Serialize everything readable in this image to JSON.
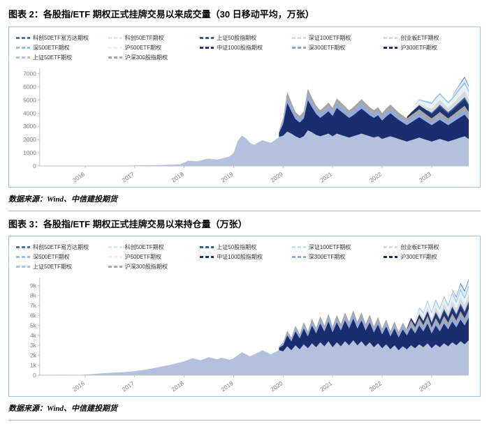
{
  "figure2": {
    "title": "图表 2：各股指/ETF 期权正式挂牌交易以来成交量（30 日移动平均，万张）",
    "source": "数据来源：Wind、中信建投期货"
  },
  "figure3": {
    "title": "图表 3：各股指/ETF 期权正式挂牌交易以来持仓量（万张）",
    "source": "数据来源：Wind、中信建投期货"
  },
  "colors": {
    "panel_border": "#9DC3E6",
    "axis": "#bfbfbf",
    "tick_text": "#7f7f7f"
  },
  "legend": [
    {
      "label": "科创50ETF易方达期权",
      "color": "#4472C4"
    },
    {
      "label": "科创50ETF期权",
      "color": "#DEEBF7"
    },
    {
      "label": "上证50股指期权",
      "color": "#2E5EAA"
    },
    {
      "label": "深证100ETF期权",
      "color": "#C9E3F2"
    },
    {
      "label": "创业板ETF期权",
      "color": "#D9D9D9"
    },
    {
      "label": "深500ETF期权",
      "color": "#8FC1E9"
    },
    {
      "label": "沪500ETF期权",
      "color": "#EAF1F9"
    },
    {
      "label": "中证1000股指期权",
      "color": "#1F3470"
    },
    {
      "label": "深300ETF期权",
      "color": "#8FAADC"
    },
    {
      "label": "沪300ETF期权",
      "color": "#1A2D6E"
    },
    {
      "label": "上证50ETF期权",
      "color": "#B3C1DC"
    },
    {
      "label": "沪深300股指期权",
      "color": "#A6A6A6"
    }
  ],
  "chart_data": [
    {
      "type": "area",
      "stacked": true,
      "title": "各股指/ETF期权正式挂牌交易以来成交量（30日移动平均，万张）",
      "legend_position": "top",
      "grid": false,
      "x_start": "2015-02",
      "x_end": "2023-10",
      "ylim": [
        0,
        7400
      ],
      "y_ticks": [
        {
          "v": 0,
          "label": "0"
        },
        {
          "v": 1000,
          "label": "1000"
        },
        {
          "v": 2000,
          "label": "2000"
        },
        {
          "v": 3000,
          "label": "3000"
        },
        {
          "v": 4000,
          "label": "4000"
        },
        {
          "v": 5000,
          "label": "5000"
        },
        {
          "v": 6000,
          "label": "6000"
        },
        {
          "v": 7000,
          "label": "7000"
        }
      ],
      "x_ticks": [
        {
          "m": "2016-01",
          "label": "2016"
        },
        {
          "m": "2017-01",
          "label": "2017"
        },
        {
          "m": "2018-01",
          "label": "2018"
        },
        {
          "m": "2019-01",
          "label": "2019"
        },
        {
          "m": "2020-01",
          "label": "2020"
        },
        {
          "m": "2021-01",
          "label": "2021"
        },
        {
          "m": "2022-01",
          "label": "2022"
        },
        {
          "m": "2023-01",
          "label": "2023"
        }
      ],
      "series": [
        {
          "name": "上证50ETF期权",
          "color": "#B3C1DC",
          "start": "2015-02",
          "values": [
            2,
            4,
            6,
            9,
            12,
            15,
            13,
            11,
            9,
            8,
            8,
            9,
            10,
            12,
            14,
            15,
            17,
            19,
            21,
            24,
            26,
            29,
            32,
            36,
            40,
            45,
            50,
            56,
            62,
            70,
            79,
            89,
            100,
            115,
            130,
            250,
            400,
            380,
            350,
            420,
            500,
            560,
            520,
            480,
            560,
            640,
            720,
            1000,
            1900,
            2300,
            2100,
            1750,
            1600,
            1800,
            1950,
            1850,
            1750,
            1950,
            2200,
            2300,
            2600,
            2450,
            2250,
            2100,
            2250,
            2700,
            2550,
            2350,
            2250,
            2350,
            2450,
            2250,
            2450,
            2350,
            2250,
            2150,
            2250,
            2350,
            2450,
            2350,
            2250,
            2150,
            2250,
            2050,
            2150,
            2250,
            2150,
            2050,
            1950,
            1850,
            1950,
            2050,
            2150,
            2050,
            1950,
            1850,
            1950,
            2050,
            1950,
            1850,
            1950,
            2050,
            2150,
            2250,
            2050
          ]
        },
        {
          "name": "沪300ETF期权",
          "color": "#1A2D6E",
          "start": "2019-12",
          "values": [
            300,
            900,
            2200,
            1700,
            1300,
            1200,
            1350,
            2300,
            1900,
            1600,
            1400,
            1550,
            1700,
            1550,
            1950,
            1800,
            1650,
            1500,
            1600,
            1750,
            1900,
            1750,
            1600,
            1500,
            1600,
            1400,
            1600,
            1750,
            1600,
            1450,
            1350,
            1250,
            1350,
            1450,
            1550,
            1450,
            1350,
            1250,
            1350,
            1450,
            1350,
            1250,
            1350,
            1450,
            1550,
            1650,
            1450
          ]
        },
        {
          "name": "深300ETF期权",
          "color": "#8FAADC",
          "start": "2019-12",
          "values": [
            60,
            180,
            420,
            330,
            260,
            240,
            270,
            440,
            370,
            310,
            280,
            300,
            330,
            300,
            380,
            350,
            320,
            290,
            310,
            340,
            370,
            340,
            310,
            290,
            310,
            270,
            310,
            340,
            310,
            280,
            260,
            240,
            260,
            280,
            300,
            280,
            260,
            240,
            260,
            290,
            260,
            240,
            260,
            290,
            310,
            330,
            290
          ]
        },
        {
          "name": "沪深300股指期权",
          "color": "#A6A6A6",
          "start": "2019-12",
          "values": [
            100,
            250,
            400,
            350,
            280,
            260,
            280,
            420,
            360,
            320,
            290,
            310,
            330,
            300,
            340,
            320,
            300,
            280,
            300,
            320,
            340,
            320,
            300,
            290,
            300,
            280,
            300,
            320,
            300,
            280,
            270,
            260,
            270,
            280,
            290,
            280,
            270,
            260,
            280,
            300,
            280,
            260,
            270,
            290,
            310,
            330,
            300
          ]
        },
        {
          "name": "中证1000股指期权",
          "color": "#1F3470",
          "start": "2022-07",
          "values": [
            120,
            220,
            280,
            320,
            340,
            360,
            360,
            400,
            440,
            410,
            380,
            400,
            440,
            480,
            520,
            470
          ]
        },
        {
          "name": "上证50股指期权",
          "color": "#2E5EAA",
          "start": "2022-12",
          "values": [
            40,
            80,
            100,
            120,
            110,
            100,
            110,
            120,
            130,
            140,
            130
          ]
        },
        {
          "name": "创业板ETF期权",
          "color": "#D9D9D9",
          "start": "2022-09",
          "values": [
            90,
            140,
            190,
            220,
            260,
            300,
            340,
            310,
            290,
            310,
            350,
            400,
            440,
            390
          ]
        },
        {
          "name": "深证100ETF期权",
          "color": "#C9E3F2",
          "start": "2022-12",
          "values": [
            20,
            35,
            45,
            55,
            50,
            45,
            50,
            55,
            60,
            65,
            60
          ]
        },
        {
          "name": "沪500ETF期权",
          "color": "#EAF1F9",
          "start": "2022-09",
          "values": [
            180,
            240,
            290,
            320,
            350,
            390,
            370,
            350,
            330,
            350,
            400,
            450,
            490,
            440
          ]
        },
        {
          "name": "深500ETF期权",
          "color": "#8FC1E9",
          "start": "2022-09",
          "values": [
            40,
            70,
            90,
            105,
            120,
            135,
            125,
            115,
            110,
            120,
            140,
            160,
            175,
            155
          ]
        },
        {
          "name": "科创50ETF期权",
          "color": "#DEEBF7",
          "start": "2023-06",
          "values": [
            90,
            190,
            240,
            290,
            260
          ]
        },
        {
          "name": "科创50ETF易方达期权",
          "color": "#4472C4",
          "start": "2023-06",
          "values": [
            25,
            55,
            75,
            95,
            85
          ]
        }
      ]
    },
    {
      "type": "area",
      "stacked": true,
      "title": "各股指/ETF期权正式挂牌交易以来持仓量（万张）",
      "legend_position": "top",
      "grid": false,
      "x_start": "2015-02",
      "x_end": "2023-10",
      "ylim": [
        0,
        9800
      ],
      "y_ticks": [
        {
          "v": 0,
          "label": "0"
        },
        {
          "v": 1000,
          "label": "1k"
        },
        {
          "v": 2000,
          "label": "2k"
        },
        {
          "v": 3000,
          "label": "3k"
        },
        {
          "v": 4000,
          "label": "4k"
        },
        {
          "v": 5000,
          "label": "5k"
        },
        {
          "v": 6000,
          "label": "6k"
        },
        {
          "v": 7000,
          "label": "7k"
        },
        {
          "v": 8000,
          "label": "8k"
        },
        {
          "v": 9000,
          "label": "9k"
        }
      ],
      "x_ticks": [
        {
          "m": "2016-01",
          "label": "2016"
        },
        {
          "m": "2017-01",
          "label": "2017"
        },
        {
          "m": "2018-01",
          "label": "2018"
        },
        {
          "m": "2019-01",
          "label": "2019"
        },
        {
          "m": "2020-01",
          "label": "2020"
        },
        {
          "m": "2021-01",
          "label": "2021"
        },
        {
          "m": "2022-01",
          "label": "2022"
        },
        {
          "m": "2023-01",
          "label": "2023"
        }
      ],
      "series": [
        {
          "name": "上证50ETF期权",
          "color": "#B3C1DC",
          "start": "2015-02",
          "values": [
            5,
            10,
            18,
            28,
            38,
            48,
            42,
            36,
            32,
            30,
            32,
            60,
            90,
            120,
            150,
            180,
            210,
            240,
            260,
            280,
            300,
            330,
            360,
            400,
            460,
            520,
            590,
            660,
            740,
            820,
            900,
            990,
            1080,
            1180,
            1280,
            1380,
            1550,
            1700,
            1600,
            1500,
            1650,
            1800,
            1700,
            1600,
            1750,
            1650,
            1550,
            1700,
            2000,
            2300,
            2100,
            1900,
            2100,
            2300,
            2500,
            2300,
            2100,
            2300,
            2500,
            2400,
            2900,
            2500,
            3000,
            2600,
            3100,
            2700,
            3200,
            2800,
            3300,
            2900,
            3400,
            2800,
            3300,
            2900,
            3400,
            3000,
            3500,
            3000,
            3400,
            2900,
            3300,
            2800,
            3200,
            2700,
            3100,
            2600,
            3000,
            2500,
            2900,
            2600,
            3000,
            2700,
            3100,
            2800,
            3200,
            2700,
            3100,
            2800,
            3200,
            2900,
            3300,
            3000,
            3400,
            3100,
            3500
          ]
        },
        {
          "name": "沪300ETF期权",
          "color": "#1A2D6E",
          "start": "2019-12",
          "values": [
            250,
            600,
            1100,
            900,
            1400,
            1100,
            1600,
            1200,
            1800,
            1400,
            1900,
            1500,
            2000,
            1500,
            2000,
            1600,
            2100,
            1700,
            2200,
            1700,
            2100,
            1600,
            2000,
            1500,
            1900,
            1400,
            1800,
            1300,
            1700,
            1300,
            1700,
            1400,
            1800,
            1500,
            1900,
            1600,
            2000,
            1500,
            1900,
            1600,
            2000,
            1700,
            2100,
            1800,
            2200,
            1900,
            2300
          ]
        },
        {
          "name": "深300ETF期权",
          "color": "#8FAADC",
          "start": "2019-12",
          "values": [
            50,
            120,
            220,
            180,
            280,
            220,
            320,
            240,
            360,
            280,
            380,
            300,
            400,
            300,
            400,
            320,
            420,
            340,
            440,
            340,
            420,
            320,
            400,
            300,
            380,
            280,
            360,
            260,
            340,
            260,
            340,
            280,
            360,
            300,
            380,
            320,
            400,
            300,
            380,
            320,
            400,
            340,
            420,
            360,
            440,
            380,
            460
          ]
        },
        {
          "name": "沪深300股指期权",
          "color": "#A6A6A6",
          "start": "2019-12",
          "values": [
            80,
            150,
            250,
            200,
            280,
            220,
            300,
            240,
            320,
            260,
            340,
            280,
            360,
            280,
            350,
            300,
            370,
            310,
            380,
            320,
            380,
            310,
            370,
            300,
            360,
            290,
            350,
            280,
            340,
            270,
            330,
            280,
            340,
            290,
            350,
            300,
            360,
            290,
            350,
            300,
            360,
            310,
            370,
            320,
            380,
            330,
            390
          ]
        },
        {
          "name": "中证1000股指期权",
          "color": "#1F3470",
          "start": "2022-07",
          "values": [
            150,
            260,
            320,
            380,
            420,
            460,
            440,
            520,
            470,
            550,
            500,
            580,
            530,
            610,
            560,
            640
          ]
        },
        {
          "name": "上证50股指期权",
          "color": "#2E5EAA",
          "start": "2022-12",
          "values": [
            60,
            90,
            120,
            110,
            140,
            120,
            150,
            130,
            160,
            140,
            170
          ]
        },
        {
          "name": "创业板ETF期权",
          "color": "#D9D9D9",
          "start": "2022-09",
          "values": [
            150,
            250,
            330,
            380,
            380,
            460,
            420,
            500,
            450,
            530,
            480,
            560,
            600,
            650
          ]
        },
        {
          "name": "深证100ETF期权",
          "color": "#C9E3F2",
          "start": "2022-12",
          "values": [
            30,
            50,
            70,
            60,
            80,
            70,
            90,
            80,
            100,
            90,
            110
          ]
        },
        {
          "name": "沪500ETF期权",
          "color": "#EAF1F9",
          "start": "2022-09",
          "values": [
            250,
            350,
            420,
            470,
            450,
            530,
            480,
            560,
            500,
            580,
            530,
            610,
            560,
            630
          ]
        },
        {
          "name": "深500ETF期权",
          "color": "#8FC1E9",
          "start": "2022-09",
          "values": [
            70,
            110,
            140,
            160,
            150,
            180,
            160,
            190,
            170,
            200,
            180,
            210,
            190,
            220
          ]
        },
        {
          "name": "科创50ETF期权",
          "color": "#DEEBF7",
          "start": "2023-06",
          "values": [
            250,
            380,
            450,
            520,
            480
          ]
        },
        {
          "name": "科创50ETF易方达期权",
          "color": "#4472C4",
          "start": "2023-06",
          "values": [
            70,
            110,
            130,
            150,
            140
          ]
        }
      ]
    }
  ]
}
